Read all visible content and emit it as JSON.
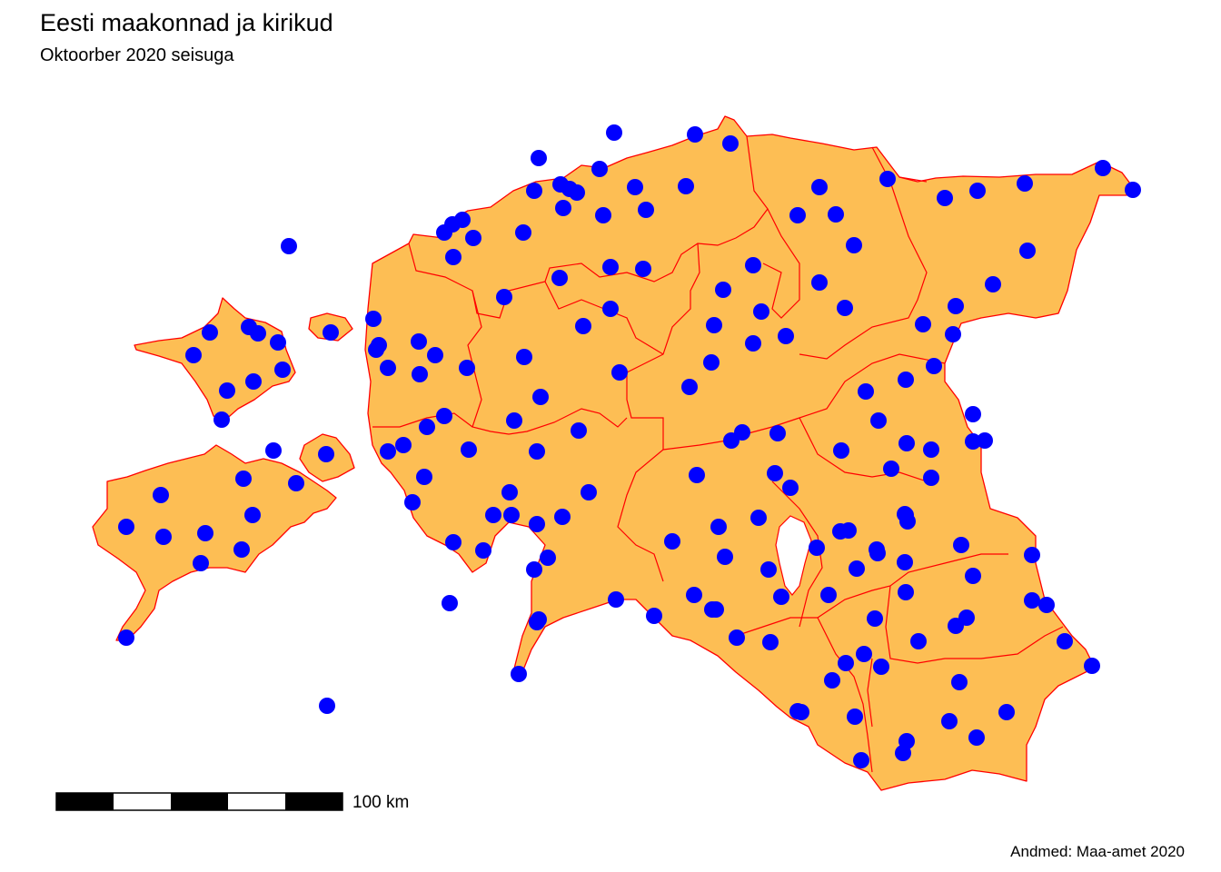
{
  "title": "Eesti maakonnad ja kirikud",
  "subtitle": "Oktoorber 2020 seisuga",
  "credit": "Andmed: Maa-amet 2020",
  "scale_bar": {
    "label": "100 km",
    "length_km": 100,
    "segments": 5
  },
  "legend_layers": [
    "maakonnad",
    "kirikud"
  ],
  "colors": {
    "county_fill": "#fdbe54",
    "county_border": "#ff0000",
    "church": "#0000ff",
    "background": "#ffffff"
  },
  "church_count": 161
}
